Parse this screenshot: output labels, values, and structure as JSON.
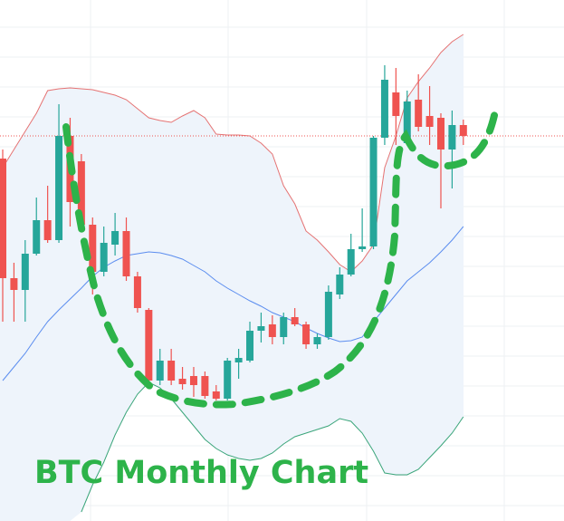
{
  "chart_data": {
    "type": "candlestick",
    "title": "BTC Monthly Chart",
    "ylim": [
      0,
      575
    ],
    "up_color": "#26a69a",
    "down_color": "#ef5350",
    "band_fill": "#eef4fb",
    "open": [
      400,
      268,
      255,
      295,
      332,
      310,
      425,
      397,
      327,
      275,
      305,
      320,
      270,
      233,
      155,
      177,
      157,
      160,
      160,
      143,
      135,
      175,
      177,
      210,
      217,
      203,
      225,
      217,
      195,
      203,
      250,
      272,
      300,
      303,
      423,
      473,
      417,
      465,
      447,
      445,
      410,
      437
    ],
    "high": [
      410,
      285,
      310,
      357,
      370,
      460,
      445,
      405,
      335,
      325,
      340,
      335,
      275,
      235,
      190,
      190,
      170,
      170,
      165,
      150,
      180,
      190,
      220,
      230,
      227,
      230,
      235,
      220,
      207,
      260,
      280,
      317,
      345,
      425,
      503,
      500,
      475,
      493,
      480,
      450,
      453,
      443
    ],
    "low": [
      220,
      220,
      220,
      293,
      307,
      307,
      325,
      320,
      250,
      270,
      293,
      265,
      230,
      150,
      150,
      150,
      145,
      137,
      135,
      133,
      133,
      157,
      175,
      197,
      195,
      195,
      215,
      190,
      190,
      200,
      245,
      270,
      297,
      300,
      415,
      415,
      415,
      430,
      415,
      345,
      367,
      415
    ],
    "close": [
      268,
      255,
      295,
      332,
      310,
      425,
      352,
      327,
      275,
      307,
      320,
      270,
      235,
      155,
      177,
      155,
      151,
      150,
      138,
      135,
      177,
      180,
      210,
      215,
      203,
      225,
      217,
      195,
      203,
      253,
      272,
      300,
      303,
      423,
      487,
      447,
      463,
      435,
      435,
      410,
      437,
      425
    ],
    "last_price": 425,
    "last_price_color": "#ef5350",
    "series": [
      {
        "name": "upper",
        "color": "#e57373",
        "values": [
          390,
          410,
          430,
          450,
          475,
          477,
          478,
          477,
          476,
          473,
          470,
          465,
          455,
          445,
          442,
          440,
          447,
          453,
          445,
          427,
          426,
          426,
          425,
          417,
          405,
          370,
          350,
          320,
          310,
          297,
          283,
          275,
          287,
          305,
          390,
          425,
          467,
          485,
          500,
          517,
          529,
          537
        ]
      },
      {
        "name": "middle",
        "color": "#5b8def",
        "values": [
          155,
          170,
          185,
          203,
          220,
          233,
          245,
          257,
          270,
          280,
          287,
          293,
          295,
          297,
          296,
          293,
          289,
          282,
          275,
          265,
          257,
          250,
          243,
          237,
          230,
          225,
          220,
          213,
          207,
          202,
          198,
          199,
          203,
          220,
          235,
          250,
          265,
          275,
          285,
          297,
          310,
          325
        ]
      },
      {
        "name": "lower",
        "color": "#3aa57a",
        "values": [
          null,
          null,
          null,
          null,
          null,
          null,
          null,
          10,
          40,
          65,
          95,
          120,
          140,
          153,
          147,
          135,
          120,
          105,
          90,
          80,
          73,
          69,
          67,
          69,
          75,
          85,
          93,
          97,
          101,
          105,
          113,
          110,
          97,
          77,
          53,
          51,
          51,
          57,
          70,
          83,
          97,
          115
        ]
      }
    ]
  }
}
